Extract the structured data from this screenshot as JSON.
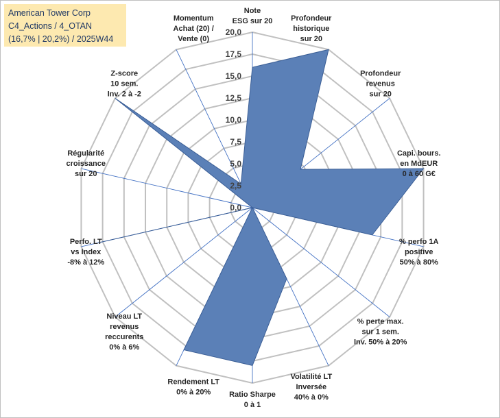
{
  "title": {
    "lines": [
      "American Tower Corp",
      "C4_Actions / 4_OTAN",
      "(16,7% | 20,2%) / 2025W44"
    ]
  },
  "chart_data": {
    "type": "radar",
    "title": "American Tower Corp - C4_Actions / 4_OTAN (16,7% | 20,2%) / 2025W44",
    "range": [
      0,
      20
    ],
    "ticks": [
      "0,0",
      "2,5",
      "5,0",
      "7,5",
      "10,0",
      "12,5",
      "15,0",
      "17,5",
      "20,0"
    ],
    "tick_values": [
      0,
      2.5,
      5,
      7.5,
      10,
      12.5,
      15,
      17.5,
      20
    ],
    "axes": [
      {
        "lines": [
          "Note",
          "ESG sur 20"
        ]
      },
      {
        "lines": [
          "Profondeur",
          "historique",
          "sur 20"
        ]
      },
      {
        "lines": [
          "Profondeur",
          "revenus",
          "sur 20"
        ]
      },
      {
        "lines": [
          "Capi. bours.",
          "en MdEUR",
          "0 à 60 G€"
        ]
      },
      {
        "lines": [
          "% perfo 1A",
          "positive",
          "50% à 80%"
        ]
      },
      {
        "lines": [
          "% perte max.",
          "sur 1 sem.",
          "Inv. 50% à 20%"
        ]
      },
      {
        "lines": [
          "Volatilité LT",
          "Inversée",
          "40% à 0%"
        ]
      },
      {
        "lines": [
          "Ratio Sharpe",
          "0 à 1"
        ]
      },
      {
        "lines": [
          "Rendement LT",
          "0% à 20%"
        ]
      },
      {
        "lines": [
          "Niveau LT",
          "revenus",
          "reccurents",
          "0% à 6%"
        ]
      },
      {
        "lines": [
          "Perfo. LT",
          "vs Index",
          "-8% à 12%"
        ]
      },
      {
        "lines": [
          "Régularité",
          "croissance",
          "sur 20"
        ]
      },
      {
        "lines": [
          "Z-score",
          "10 sem.",
          "Inv. 2 à -2"
        ]
      },
      {
        "lines": [
          "Momentum",
          "Achat (20) /",
          "Vente (0)"
        ]
      }
    ],
    "series": [
      {
        "name": "American Tower Corp",
        "color": "#5b80b7",
        "values": [
          16,
          20,
          7,
          20,
          14,
          0,
          9,
          18,
          18,
          0,
          18,
          0,
          20,
          3
        ]
      }
    ]
  }
}
